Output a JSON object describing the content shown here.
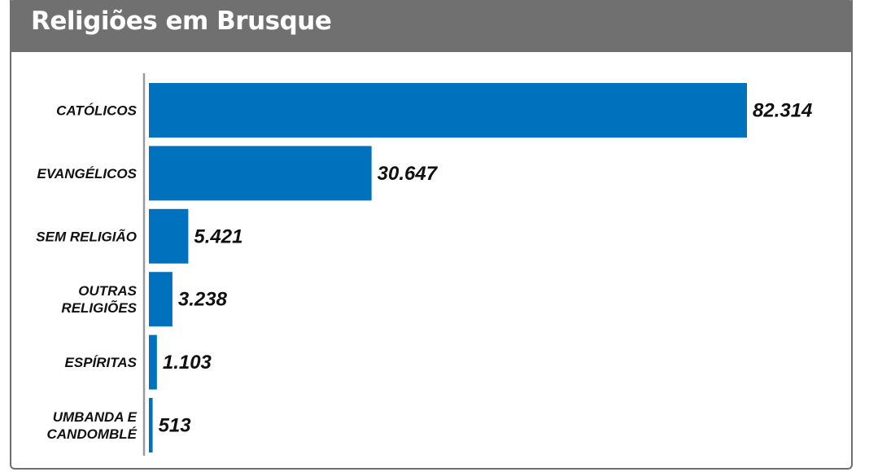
{
  "header": {
    "title": "Religiões em Brusque",
    "background": "#707070"
  },
  "chart_data": {
    "type": "bar",
    "orientation": "horizontal",
    "title": "Religiões em Brusque",
    "categories": [
      [
        "CATÓLICOS"
      ],
      [
        "EVANGÉLICOS"
      ],
      [
        "SEM RELIGIÃO"
      ],
      [
        "OUTRAS",
        "RELIGIÕES"
      ],
      [
        "ESPÍRITAS"
      ],
      [
        "UMBANDA E",
        "CANDOMBLÉ"
      ]
    ],
    "values": [
      82314,
      30647,
      5421,
      3238,
      1103,
      513
    ],
    "value_labels": [
      "82.314",
      "30.647",
      "5.421",
      "3.238",
      "1.103",
      "513"
    ],
    "bar_color": "#0071bc",
    "axis_color": "#9a9a9a",
    "grid": false,
    "legend": "none"
  }
}
